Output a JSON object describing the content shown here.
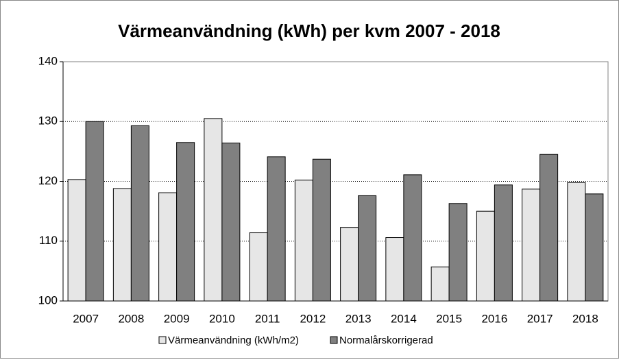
{
  "chart_data": {
    "type": "bar",
    "title": "Värmeanvändning (kWh) per kvm 2007 - 2018",
    "categories": [
      "2007",
      "2008",
      "2009",
      "2010",
      "2011",
      "2012",
      "2013",
      "2014",
      "2015",
      "2016",
      "2017",
      "2018"
    ],
    "series": [
      {
        "name": "Värmeanvändning (kWh/m2)",
        "color": "#e6e6e6",
        "values": [
          120.3,
          118.8,
          118.1,
          130.5,
          111.4,
          120.2,
          112.3,
          110.6,
          105.7,
          115.0,
          118.7,
          119.8
        ]
      },
      {
        "name": "Normalårskorrigerad",
        "color": "#808080",
        "values": [
          130.0,
          129.3,
          126.5,
          126.4,
          124.1,
          123.7,
          117.6,
          121.1,
          116.3,
          119.4,
          124.5,
          117.9
        ]
      }
    ],
    "ylim": [
      100,
      140
    ],
    "yticks": [
      100,
      110,
      120,
      130,
      140
    ],
    "grid": true,
    "legend": "bottom"
  }
}
